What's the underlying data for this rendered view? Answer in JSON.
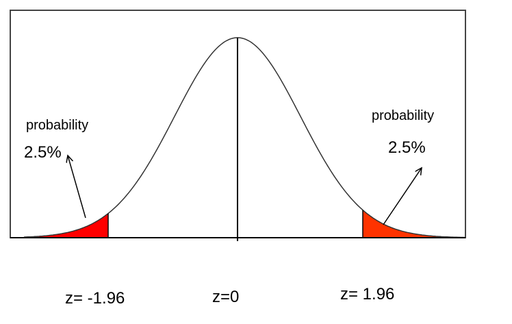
{
  "left_tail": {
    "label": "probability",
    "value": "2.5%"
  },
  "right_tail": {
    "label": "probability",
    "value": "2.5%"
  },
  "z_labels": {
    "left": "z= -1.96",
    "center": "z=0",
    "right": "z= 1.96"
  }
}
